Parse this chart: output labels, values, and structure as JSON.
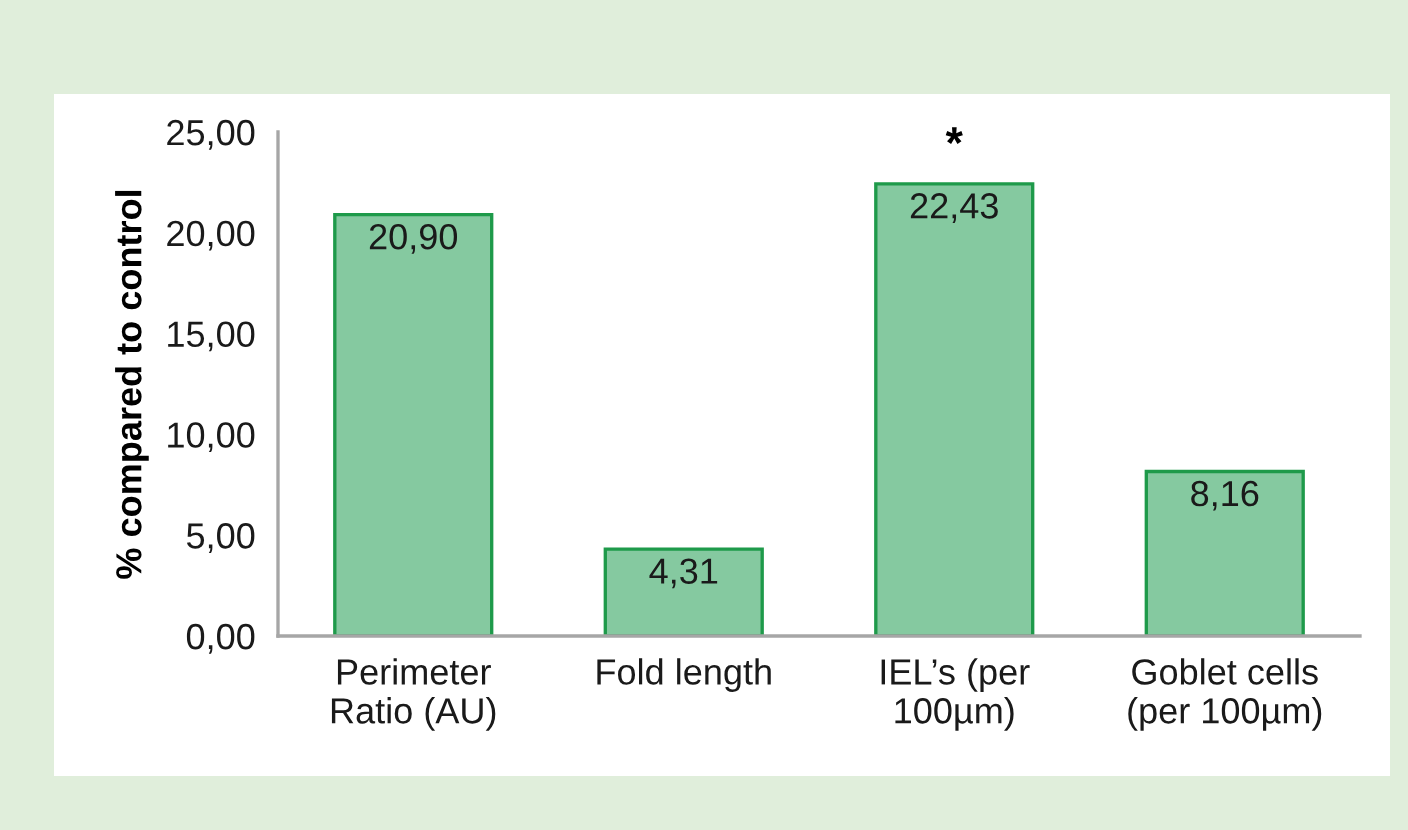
{
  "chart_data": {
    "type": "bar",
    "ylabel": "% compared to control",
    "categories": [
      "Perimeter\nRatio (AU)",
      "Fold length",
      "IEL’s (per\n100µm)",
      "Goblet cells\n(per 100µm)"
    ],
    "values": [
      20.9,
      4.31,
      22.43,
      8.16
    ],
    "value_labels": [
      "20,90",
      "4,31",
      "22,43",
      "8,16"
    ],
    "color": "#85c9a0",
    "ylim": [
      0,
      25
    ],
    "yticks": [
      {
        "value": 0,
        "label": "0,00"
      },
      {
        "value": 5,
        "label": "5,00"
      },
      {
        "value": 10,
        "label": "10,00"
      },
      {
        "value": 15,
        "label": "15,00"
      },
      {
        "value": 20,
        "label": "20,00"
      },
      {
        "value": 25,
        "label": "25,00"
      }
    ],
    "annotations": [
      {
        "text": "*",
        "x": "IEL’s (per\n100µm)",
        "y": 22.43
      }
    ],
    "grid": false,
    "legend": false
  }
}
